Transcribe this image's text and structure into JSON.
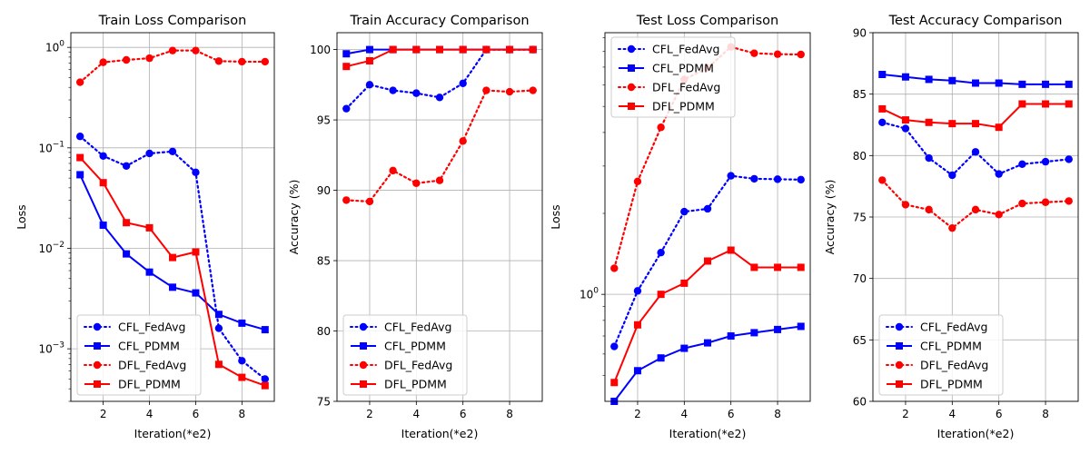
{
  "chart_data": [
    {
      "type": "line",
      "title": "Train Loss Comparison",
      "xlabel": "Iteration(*e2)",
      "ylabel": "Loss",
      "yscale": "log",
      "xlim": [
        0.6,
        9.4
      ],
      "ylim": [
        0.0003,
        1.4
      ],
      "xticks": [
        2,
        4,
        6,
        8
      ],
      "yticks": [
        0.001,
        0.01,
        0.1,
        1
      ],
      "ytick_labels": [
        "10^-3",
        "10^-2",
        "10^-1",
        "10^0"
      ],
      "legend_position": "lower-left",
      "x": [
        1,
        2,
        3,
        4,
        5,
        6,
        7,
        8,
        9
      ],
      "series": [
        {
          "name": "CFL_FedAvg",
          "values": [
            0.13,
            0.083,
            0.066,
            0.088,
            0.092,
            0.057,
            0.0016,
            0.00076,
            0.0005
          ]
        },
        {
          "name": "CFL_PDMM",
          "values": [
            0.054,
            0.017,
            0.0088,
            0.0058,
            0.0041,
            0.0036,
            0.0022,
            0.0018,
            0.00155
          ]
        },
        {
          "name": "DFL_FedAvg",
          "values": [
            0.45,
            0.71,
            0.75,
            0.78,
            0.93,
            0.93,
            0.73,
            0.72,
            0.72
          ]
        },
        {
          "name": "DFL_PDMM",
          "values": [
            0.08,
            0.045,
            0.018,
            0.016,
            0.0081,
            0.0092,
            0.0007,
            0.00052,
            0.00043
          ]
        }
      ]
    },
    {
      "type": "line",
      "title": "Train Accuracy Comparison",
      "xlabel": "Iteration(*e2)",
      "ylabel": "Accuracy (%)",
      "yscale": "linear",
      "xlim": [
        0.6,
        9.4
      ],
      "ylim": [
        75,
        101.2
      ],
      "xticks": [
        2,
        4,
        6,
        8
      ],
      "yticks": [
        75,
        80,
        85,
        90,
        95,
        100
      ],
      "legend_position": "lower-left",
      "x": [
        1,
        2,
        3,
        4,
        5,
        6,
        7,
        8,
        9
      ],
      "series": [
        {
          "name": "CFL_FedAvg",
          "values": [
            95.8,
            97.5,
            97.1,
            96.9,
            96.6,
            97.6,
            100.0,
            100.0,
            100.0
          ]
        },
        {
          "name": "CFL_PDMM",
          "values": [
            99.7,
            100.0,
            100.0,
            100.0,
            100.0,
            100.0,
            100.0,
            100.0,
            100.0
          ]
        },
        {
          "name": "DFL_FedAvg",
          "values": [
            89.3,
            89.2,
            91.4,
            90.5,
            90.7,
            93.5,
            97.1,
            97.0,
            97.1
          ]
        },
        {
          "name": "DFL_PDMM",
          "values": [
            98.8,
            99.2,
            100.0,
            100.0,
            100.0,
            100.0,
            100.0,
            100.0,
            100.0
          ]
        }
      ]
    },
    {
      "type": "line",
      "title": "Test Loss Comparison",
      "xlabel": "Iteration(*e2)",
      "ylabel": "Loss",
      "yscale": "log",
      "xlim": [
        0.6,
        9.4
      ],
      "ylim": [
        0.4,
        9.4
      ],
      "xticks": [
        2,
        4,
        6,
        8
      ],
      "yticks": [
        1
      ],
      "ytick_labels": [
        "10^0"
      ],
      "legend_position": "upper-left",
      "x": [
        1,
        2,
        3,
        4,
        5,
        6,
        7,
        8,
        9
      ],
      "series": [
        {
          "name": "CFL_FedAvg",
          "values": [
            0.64,
            1.03,
            1.43,
            2.03,
            2.08,
            2.76,
            2.69,
            2.68,
            2.67
          ]
        },
        {
          "name": "CFL_PDMM",
          "values": [
            0.4,
            0.52,
            0.58,
            0.63,
            0.66,
            0.7,
            0.72,
            0.74,
            0.76
          ]
        },
        {
          "name": "DFL_FedAvg",
          "values": [
            1.25,
            2.63,
            4.18,
            6.3,
            6.95,
            8.32,
            7.88,
            7.82,
            7.8
          ]
        },
        {
          "name": "DFL_PDMM",
          "values": [
            0.47,
            0.77,
            1.0,
            1.1,
            1.33,
            1.46,
            1.26,
            1.26,
            1.26
          ]
        }
      ]
    },
    {
      "type": "line",
      "title": "Test Accuracy Comparison",
      "xlabel": "Iteration(*e2)",
      "ylabel": "Accuracy (%)",
      "yscale": "linear",
      "xlim": [
        0.6,
        9.4
      ],
      "ylim": [
        60,
        90
      ],
      "xticks": [
        2,
        4,
        6,
        8
      ],
      "yticks": [
        60,
        65,
        70,
        75,
        80,
        85,
        90
      ],
      "legend_position": "lower-left",
      "x": [
        1,
        2,
        3,
        4,
        5,
        6,
        7,
        8,
        9
      ],
      "series": [
        {
          "name": "CFL_FedAvg",
          "values": [
            82.7,
            82.2,
            79.8,
            78.4,
            80.3,
            78.5,
            79.3,
            79.5,
            79.7
          ]
        },
        {
          "name": "CFL_PDMM",
          "values": [
            86.6,
            86.4,
            86.2,
            86.1,
            85.9,
            85.9,
            85.8,
            85.8,
            85.8
          ]
        },
        {
          "name": "DFL_FedAvg",
          "values": [
            78.0,
            76.0,
            75.6,
            74.1,
            75.6,
            75.2,
            76.1,
            76.2,
            76.3
          ]
        },
        {
          "name": "DFL_PDMM",
          "values": [
            83.8,
            82.9,
            82.7,
            82.6,
            82.6,
            82.3,
            84.2,
            84.2,
            84.2
          ]
        }
      ]
    }
  ],
  "series_styles": {
    "CFL_FedAvg": {
      "color": "#0000ff",
      "dash": "dotted",
      "marker": "circle"
    },
    "CFL_PDMM": {
      "color": "#0000ff",
      "dash": "solid",
      "marker": "square"
    },
    "DFL_FedAvg": {
      "color": "#ff0000",
      "dash": "dotted",
      "marker": "circle"
    },
    "DFL_PDMM": {
      "color": "#ff0000",
      "dash": "solid",
      "marker": "square"
    }
  }
}
